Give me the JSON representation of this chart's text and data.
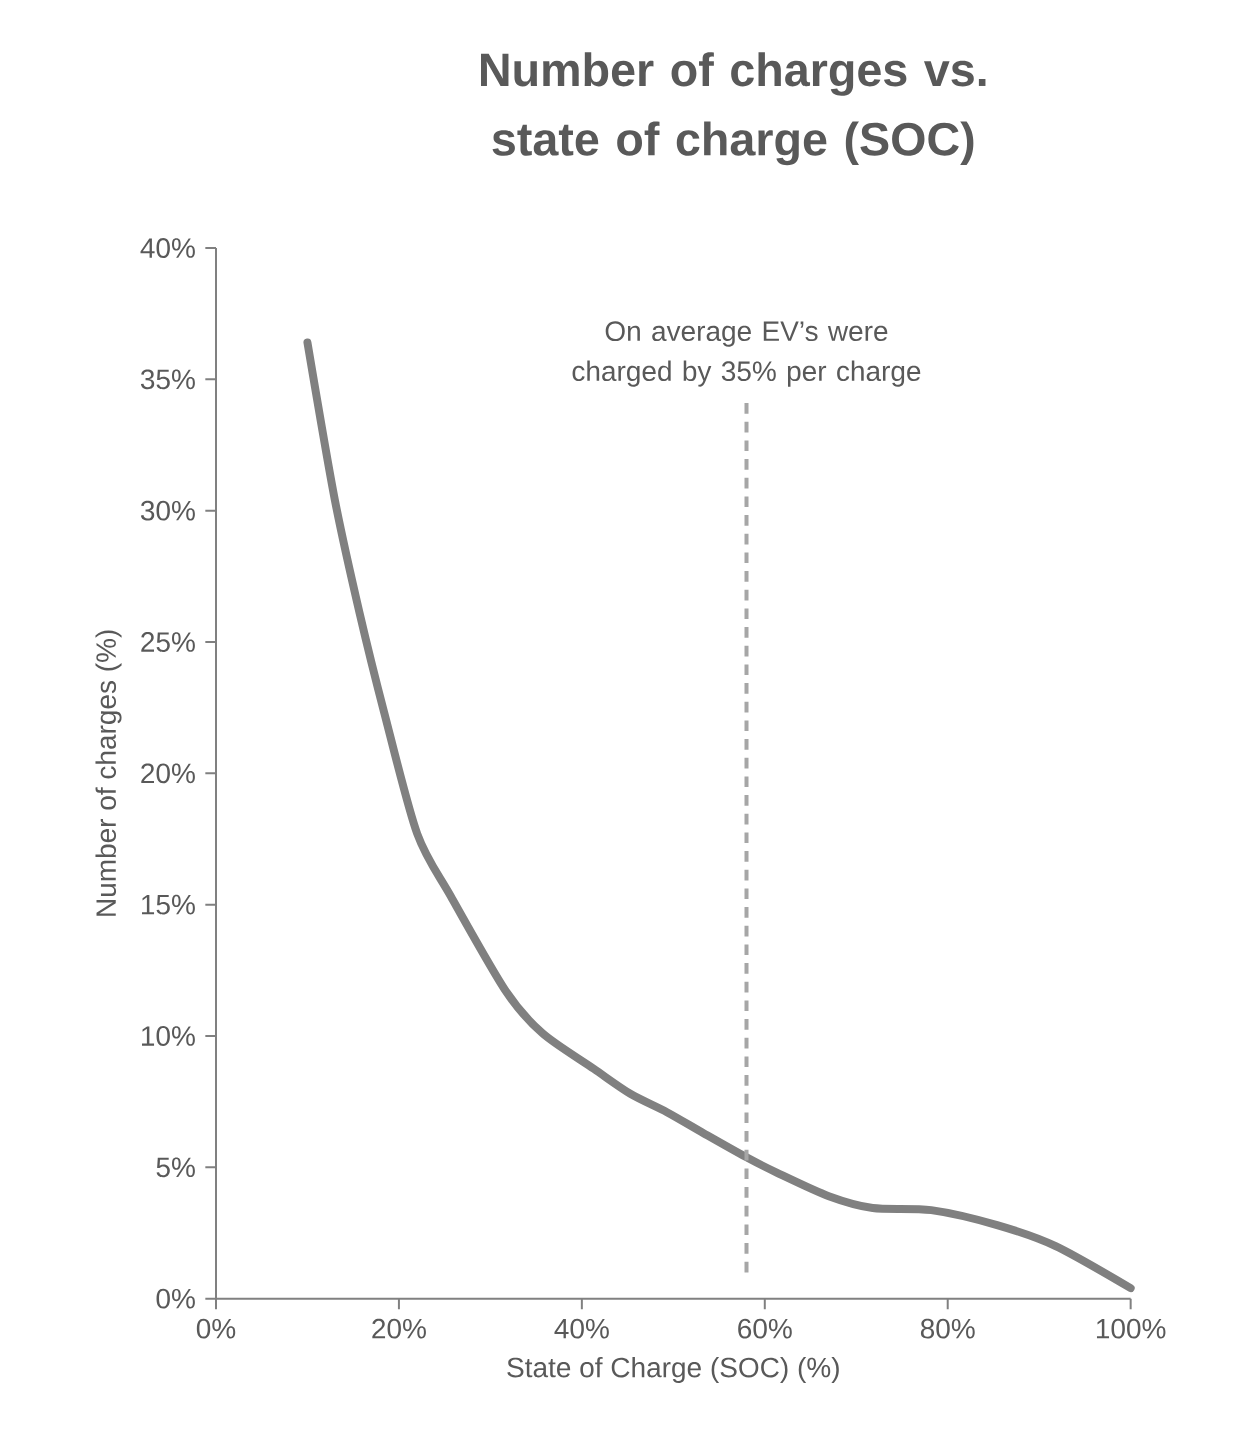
{
  "chart_data": {
    "type": "line",
    "title": "Number of charges vs. state of charge (SOC)",
    "xlabel": "State of Charge (SOC) (%)",
    "ylabel": "Number of charges (%)",
    "x": [
      10,
      13,
      15.7,
      18.4,
      22,
      25.7,
      31.7,
      35.7,
      41.3,
      45.3,
      49.3,
      53.3,
      57.9,
      61.3,
      67,
      71.8,
      78.2,
      85.4,
      91.8,
      100
    ],
    "series": [
      {
        "color": "#808080",
        "values": [
          36.4,
          30.4,
          26.1,
          22.3,
          17.7,
          15.3,
          11.7,
          10.1,
          8.75,
          7.8,
          7.1,
          6.3,
          5.4,
          4.8,
          3.9,
          3.45,
          3.37,
          2.8,
          2.0,
          0.4
        ]
      }
    ],
    "xlim": [
      0,
      100
    ],
    "ylim": [
      0,
      40
    ],
    "xticks": [
      {
        "value": 0,
        "label": "0%"
      },
      {
        "value": 20,
        "label": "20%"
      },
      {
        "value": 40,
        "label": "40%"
      },
      {
        "value": 60,
        "label": "60%"
      },
      {
        "value": 80,
        "label": "80%"
      },
      {
        "value": 100,
        "label": "100%"
      }
    ],
    "yticks": [
      {
        "value": 0,
        "label": "0%"
      },
      {
        "value": 5,
        "label": "5%"
      },
      {
        "value": 10,
        "label": "10%"
      },
      {
        "value": 15,
        "label": "15%"
      },
      {
        "value": 20,
        "label": "20%"
      },
      {
        "value": 25,
        "label": "25%"
      },
      {
        "value": 30,
        "label": "30%"
      },
      {
        "value": 35,
        "label": "35%"
      },
      {
        "value": 40,
        "label": "40%"
      }
    ],
    "ref_lines": [
      {
        "axis": "x",
        "value": 58,
        "label": "On average EV’s were charged by 35% per charge",
        "color": "#a6a6a6",
        "line_style": "dashed"
      }
    ]
  }
}
